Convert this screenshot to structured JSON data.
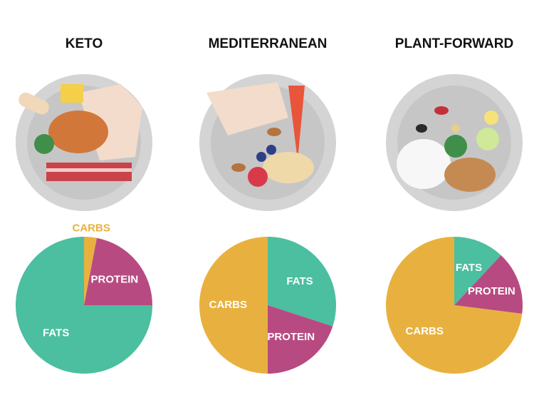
{
  "chart_data": [
    {
      "type": "pie",
      "title": "KETO",
      "categories": [
        "CARBS",
        "PROTEIN",
        "FATS"
      ],
      "values": [
        3,
        22,
        75
      ],
      "colors": [
        "#e8b13f",
        "#b84a82",
        "#4bbf9f"
      ]
    },
    {
      "type": "pie",
      "title": "MEDITERRANEAN",
      "categories": [
        "FATS",
        "PROTEIN",
        "CARBS"
      ],
      "values": [
        30,
        20,
        50
      ],
      "colors": [
        "#4bbf9f",
        "#b84a82",
        "#e8b13f"
      ]
    },
    {
      "type": "pie",
      "title": "PLANT-FORWARD",
      "categories": [
        "FATS",
        "PROTEIN",
        "CARBS"
      ],
      "values": [
        12,
        15,
        73
      ],
      "colors": [
        "#4bbf9f",
        "#b84a82",
        "#e8b13f"
      ]
    }
  ]
}
